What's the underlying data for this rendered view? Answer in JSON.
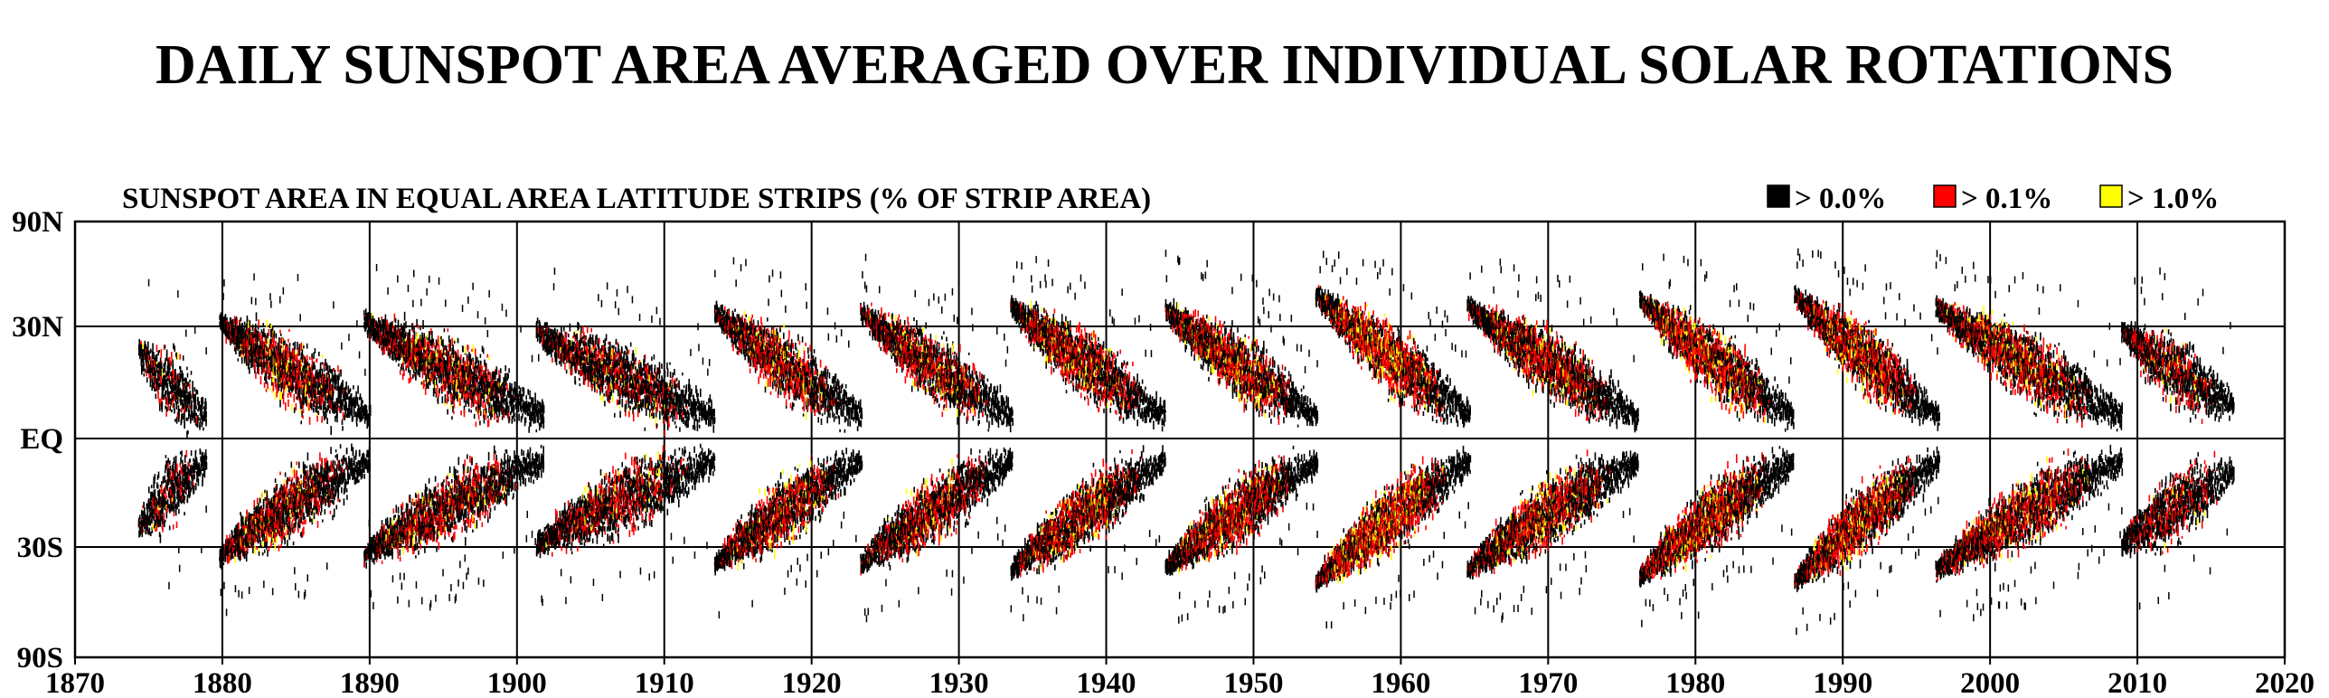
{
  "chart_data": {
    "type": "heatmap",
    "title": "DAILY SUNSPOT AREA AVERAGED OVER INDIVIDUAL SOLAR ROTATIONS",
    "subtitle": "SUNSPOT AREA IN EQUAL AREA LATITUDE STRIPS (% OF STRIP AREA)",
    "xlabel": "",
    "ylabel": "",
    "xlim": [
      1870,
      2020
    ],
    "ylim": [
      -90,
      90
    ],
    "x_ticks": [
      1870,
      1880,
      1890,
      1900,
      1910,
      1920,
      1930,
      1940,
      1950,
      1960,
      1970,
      1980,
      1990,
      2000,
      2010,
      2020
    ],
    "x_tick_labels": [
      "1870",
      "1880",
      "1890",
      "1900",
      "1910",
      "1920",
      "1930",
      "1940",
      "1950",
      "1960",
      "1970",
      "1980",
      "1990",
      "2000",
      "2010",
      "2020"
    ],
    "y_ticks": [
      90,
      30,
      0,
      -30,
      -90
    ],
    "y_tick_labels": [
      "90N",
      "30N",
      "EQ",
      "30S",
      "90S"
    ],
    "grid": true,
    "legend_position": "top-right",
    "legend": [
      {
        "label": "> 0.0%",
        "color": "#000000"
      },
      {
        "label": "> 0.1%",
        "color": "#ff0000"
      },
      {
        "label": "> 1.0%",
        "color": "#ffff00"
      }
    ],
    "cycles": [
      {
        "start": 1874.3,
        "end": 1878.9,
        "lat_start": 24,
        "lat_end": 6,
        "intensity": 0.45
      },
      {
        "start": 1879.8,
        "end": 1890.0,
        "lat_start": 33,
        "lat_end": 6,
        "intensity": 0.8
      },
      {
        "start": 1889.6,
        "end": 1901.8,
        "lat_start": 33,
        "lat_end": 6,
        "intensity": 0.75
      },
      {
        "start": 1901.3,
        "end": 1913.4,
        "lat_start": 30,
        "lat_end": 6,
        "intensity": 0.65
      },
      {
        "start": 1913.4,
        "end": 1923.4,
        "lat_start": 36,
        "lat_end": 6,
        "intensity": 0.85
      },
      {
        "start": 1923.3,
        "end": 1933.6,
        "lat_start": 36,
        "lat_end": 6,
        "intensity": 0.85
      },
      {
        "start": 1933.5,
        "end": 1944.0,
        "lat_start": 38,
        "lat_end": 6,
        "intensity": 0.95
      },
      {
        "start": 1944.0,
        "end": 1954.3,
        "lat_start": 37,
        "lat_end": 6,
        "intensity": 1.0
      },
      {
        "start": 1954.2,
        "end": 1964.7,
        "lat_start": 42,
        "lat_end": 6,
        "intensity": 1.2
      },
      {
        "start": 1964.5,
        "end": 1976.1,
        "lat_start": 38,
        "lat_end": 6,
        "intensity": 0.95
      },
      {
        "start": 1976.2,
        "end": 1986.6,
        "lat_start": 40,
        "lat_end": 6,
        "intensity": 1.1
      },
      {
        "start": 1986.7,
        "end": 1996.5,
        "lat_start": 42,
        "lat_end": 6,
        "intensity": 1.1
      },
      {
        "start": 1996.3,
        "end": 2008.9,
        "lat_start": 38,
        "lat_end": 6,
        "intensity": 0.95
      },
      {
        "start": 2008.9,
        "end": 2016.5,
        "lat_start": 30,
        "lat_end": 9,
        "intensity": 0.65
      }
    ]
  }
}
